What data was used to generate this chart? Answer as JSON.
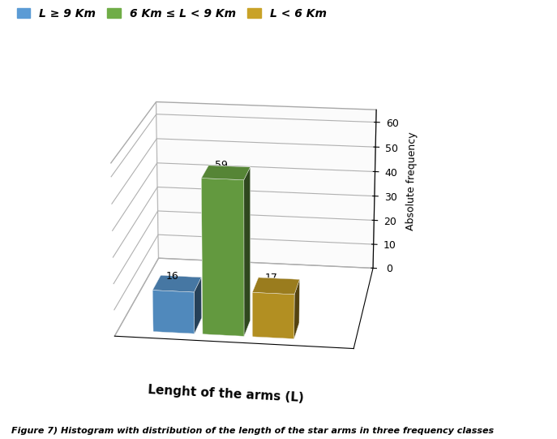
{
  "categories": [
    "L ≥ 9 Km",
    "6 Km ≤ L < 9 Km",
    "L < 6 Km"
  ],
  "values": [
    16,
    59,
    17
  ],
  "colors_top": [
    "#5b9bd5",
    "#70ad47",
    "#c9a227"
  ],
  "colors_side": [
    "#3a7abf",
    "#4e8a2e",
    "#a07818"
  ],
  "xlabel": "Lenght of the arms (L)",
  "ylabel": "Absolute frequency",
  "ylim": [
    0,
    65
  ],
  "yticks": [
    0,
    10,
    20,
    30,
    40,
    50,
    60
  ],
  "figure_caption": "Figure 7) Histogram with distribution of the length of the star arms in three frequency classes",
  "figsize": [
    6.87,
    5.41
  ],
  "dpi": 100,
  "bar_width": 0.35,
  "bar_depth": 0.5,
  "background_color": "#ffffff",
  "legend_colors": [
    "#5b9bd5",
    "#70ad47",
    "#c9a227"
  ],
  "legend_labels": [
    "L ≥ 9 Km",
    "6 Km ≤ L < 9 Km",
    "L < 6 Km"
  ],
  "elev": 18,
  "azim": -82
}
